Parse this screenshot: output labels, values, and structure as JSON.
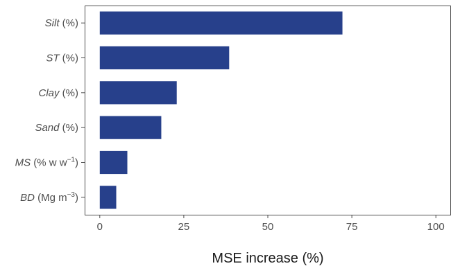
{
  "chart_data": {
    "type": "bar",
    "orientation": "horizontal",
    "categories": [
      {
        "var": "Silt",
        "unit": "(%)",
        "sup": ""
      },
      {
        "var": "ST",
        "unit": "(%)",
        "sup": ""
      },
      {
        "var": "Clay",
        "unit": "(%)",
        "sup": ""
      },
      {
        "var": "Sand",
        "unit": "(%)",
        "sup": ""
      },
      {
        "var": "MS",
        "unit": "(% w w",
        "sup": "−1",
        "close": ")"
      },
      {
        "var": "BD",
        "unit": "(Mg m",
        "sup": "−3",
        "close": ")"
      }
    ],
    "values": [
      72.2,
      38.5,
      22.9,
      18.3,
      8.2,
      4.9
    ],
    "xlabel": "MSE increase (%)",
    "ylabel": "",
    "xlim": [
      -4.5,
      104.5
    ],
    "xticks": [
      0,
      25,
      50,
      75,
      100
    ],
    "grid": false,
    "bar_color": "#27408b",
    "axis_color": "#4d4d4d"
  }
}
